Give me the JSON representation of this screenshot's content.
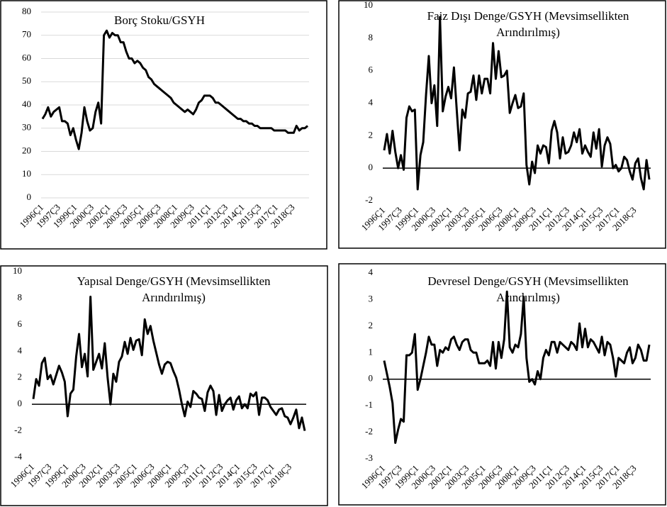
{
  "chart_data": [
    {
      "type": "line",
      "title": [
        "Borç Stoku/GSYH"
      ],
      "color": "#000000",
      "grid": true,
      "ylim": [
        0,
        80
      ],
      "yticks": [
        0,
        10,
        20,
        30,
        40,
        50,
        60,
        70,
        80
      ],
      "categories": [
        "1996Ç1",
        null,
        null,
        null,
        null,
        null,
        "1997Ç3",
        null,
        null,
        null,
        null,
        null,
        "1999Ç1",
        null,
        null,
        null,
        null,
        null,
        "2000Ç3",
        null,
        null,
        null,
        null,
        null,
        "2002Ç1",
        null,
        null,
        null,
        null,
        null,
        "2003Ç3",
        null,
        null,
        null,
        null,
        null,
        "2005Ç1",
        null,
        null,
        null,
        null,
        null,
        "2006Ç3",
        null,
        null,
        null,
        null,
        null,
        "2008Ç1",
        null,
        null,
        null,
        null,
        null,
        "2009Ç3",
        null,
        null,
        null,
        null,
        null,
        "2011Ç1",
        null,
        null,
        null,
        null,
        null,
        "2012Ç3",
        null,
        null,
        null,
        null,
        null,
        "2014Ç1",
        null,
        null,
        null,
        null,
        null,
        "2015Ç3",
        null,
        null,
        null,
        null,
        null,
        "2017Ç1",
        null,
        null,
        null,
        null,
        null,
        "2018Ç3",
        null,
        null,
        null,
        null,
        null
      ],
      "values": [
        34,
        36,
        39,
        35,
        37,
        38,
        39,
        33,
        33,
        32,
        27,
        30,
        25,
        21,
        28,
        39,
        33,
        29,
        30,
        37,
        41,
        32,
        70,
        72,
        69,
        71,
        70,
        70,
        67,
        67,
        63,
        60,
        60,
        58,
        59,
        58,
        56,
        55,
        52,
        51,
        49,
        48,
        47,
        46,
        45,
        44,
        43,
        41,
        40,
        39,
        38,
        37,
        38,
        37,
        36,
        38,
        41,
        42,
        44,
        44,
        44,
        43,
        41,
        41,
        40,
        39,
        38,
        37,
        36,
        35,
        34,
        34,
        33,
        33,
        32,
        32,
        31,
        31,
        30,
        30,
        30,
        30,
        30,
        29,
        29,
        29,
        29,
        29,
        28,
        28,
        28,
        31,
        29,
        30,
        30,
        31
      ]
    },
    {
      "type": "line",
      "title": [
        "Faiz Dışı Denge/GSYH (Mevsimsellikten",
        "Arındırılmış)"
      ],
      "color": "#000000",
      "grid": false,
      "ylim": [
        -2,
        10
      ],
      "yticks": [
        -2,
        0,
        2,
        4,
        6,
        8,
        10
      ],
      "categories": [
        "1996Ç1",
        null,
        null,
        null,
        null,
        null,
        "1997Ç3",
        null,
        null,
        null,
        null,
        null,
        "1999Ç1",
        null,
        null,
        null,
        null,
        null,
        "2000Ç3",
        null,
        null,
        null,
        null,
        null,
        "2002Ç1",
        null,
        null,
        null,
        null,
        null,
        "2003Ç3",
        null,
        null,
        null,
        null,
        null,
        "2005Ç1",
        null,
        null,
        null,
        null,
        null,
        "2006Ç3",
        null,
        null,
        null,
        null,
        null,
        "2008Ç1",
        null,
        null,
        null,
        null,
        null,
        "2009Ç3",
        null,
        null,
        null,
        null,
        null,
        "2011Ç1",
        null,
        null,
        null,
        null,
        null,
        "2012Ç3",
        null,
        null,
        null,
        null,
        null,
        "2014Ç1",
        null,
        null,
        null,
        null,
        null,
        "2015Ç3",
        null,
        null,
        null,
        null,
        null,
        "2017Ç1",
        null,
        null,
        null,
        null,
        null,
        "2018Ç3",
        null,
        null,
        null,
        null,
        null
      ],
      "values": [
        1.1,
        2.1,
        0.9,
        2.3,
        1.0,
        0.0,
        0.8,
        -0.1,
        3.1,
        3.8,
        3.5,
        3.6,
        -1.3,
        0.8,
        1.6,
        4.5,
        6.9,
        4.0,
        5.1,
        2.6,
        9.3,
        3.5,
        4.4,
        5.0,
        4.3,
        6.2,
        3.6,
        1.1,
        3.6,
        3.1,
        4.6,
        4.7,
        5.7,
        4.2,
        5.7,
        4.6,
        5.5,
        5.5,
        4.6,
        7.7,
        5.5,
        7.2,
        5.6,
        5.7,
        6.0,
        3.4,
        4.0,
        4.5,
        3.7,
        3.8,
        4.6,
        0.2,
        -1.0,
        0.4,
        -0.3,
        1.4,
        0.9,
        1.4,
        1.3,
        0.3,
        2.3,
        2.9,
        2.2,
        0.6,
        1.9,
        0.9,
        1.0,
        1.4,
        2.2,
        1.6,
        2.4,
        0.9,
        1.4,
        1.0,
        0.7,
        2.2,
        1.2,
        2.4,
        0.1,
        1.4,
        1.9,
        1.5,
        0.0,
        0.2,
        -0.2,
        0.0,
        0.7,
        0.5,
        -0.2,
        -0.7,
        0.3,
        0.6,
        -0.6,
        -1.3,
        0.5,
        -0.7
      ]
    },
    {
      "type": "line",
      "title": [
        "Yapısal Denge/GSYH (Mevsimsellikten",
        "Arındırılmış)"
      ],
      "color": "#000000",
      "grid": false,
      "ylim": [
        -4,
        10
      ],
      "yticks": [
        -4,
        -2,
        0,
        2,
        4,
        6,
        8,
        10
      ],
      "categories": [
        "1996Ç1",
        null,
        null,
        null,
        null,
        null,
        "1997Ç3",
        null,
        null,
        null,
        null,
        null,
        "1999Ç1",
        null,
        null,
        null,
        null,
        null,
        "2000Ç3",
        null,
        null,
        null,
        null,
        null,
        "2002Ç1",
        null,
        null,
        null,
        null,
        null,
        "2003Ç3",
        null,
        null,
        null,
        null,
        null,
        "2005Ç1",
        null,
        null,
        null,
        null,
        null,
        "2006Ç3",
        null,
        null,
        null,
        null,
        null,
        "2008Ç1",
        null,
        null,
        null,
        null,
        null,
        "2009Ç3",
        null,
        null,
        null,
        null,
        null,
        "2011Ç1",
        null,
        null,
        null,
        null,
        null,
        "2012Ç3",
        null,
        null,
        null,
        null,
        null,
        "2014Ç1",
        null,
        null,
        null,
        null,
        null,
        "2015Ç3",
        null,
        null,
        null,
        null,
        null,
        "2017Ç1",
        null,
        null,
        null,
        null,
        null,
        "2018Ç3",
        null,
        null,
        null,
        null,
        null
      ],
      "values": [
        0.4,
        1.9,
        1.4,
        3.1,
        3.5,
        1.9,
        2.2,
        1.5,
        2.2,
        2.9,
        2.4,
        1.7,
        -0.9,
        0.8,
        1.1,
        3.6,
        5.3,
        2.8,
        3.8,
        2.1,
        8.1,
        2.6,
        3.2,
        3.8,
        2.7,
        4.6,
        2.0,
        0.0,
        2.3,
        1.7,
        3.2,
        3.6,
        4.7,
        3.8,
        5.0,
        4.1,
        4.8,
        4.9,
        3.7,
        6.4,
        5.3,
        5.9,
        4.8,
        3.9,
        3.0,
        2.3,
        3.0,
        3.2,
        3.1,
        2.5,
        2.0,
        1.1,
        0.0,
        -0.9,
        0.2,
        -0.2,
        1.0,
        0.8,
        0.5,
        0.4,
        -0.5,
        0.9,
        1.4,
        1.0,
        -0.8,
        0.7,
        -0.5,
        0.0,
        0.3,
        0.5,
        -0.4,
        0.3,
        0.6,
        -0.3,
        0.0,
        -0.3,
        0.8,
        0.6,
        0.9,
        -0.8,
        0.5,
        0.5,
        0.3,
        -0.2,
        -0.5,
        -0.8,
        -0.4,
        -0.3,
        -0.9,
        -1.0,
        -1.5,
        -1.0,
        -0.4,
        -1.8,
        -1.0,
        -2.0
      ]
    },
    {
      "type": "line",
      "title": [
        "Devresel Denge/GSYH (Mevsimsellikten",
        "Arındırılmış)"
      ],
      "color": "#000000",
      "grid": false,
      "ylim": [
        -3,
        4
      ],
      "yticks": [
        -3,
        -2,
        -1,
        0,
        1,
        2,
        3,
        4
      ],
      "categories": [
        "1996Ç1",
        null,
        null,
        null,
        null,
        null,
        "1997Ç3",
        null,
        null,
        null,
        null,
        null,
        "1999Ç1",
        null,
        null,
        null,
        null,
        null,
        "2000Ç3",
        null,
        null,
        null,
        null,
        null,
        "2002Ç1",
        null,
        null,
        null,
        null,
        null,
        "2003Ç3",
        null,
        null,
        null,
        null,
        null,
        "2005Ç1",
        null,
        null,
        null,
        null,
        null,
        "2006Ç3",
        null,
        null,
        null,
        null,
        null,
        "2008Ç1",
        null,
        null,
        null,
        null,
        null,
        "2009Ç3",
        null,
        null,
        null,
        null,
        null,
        "2011Ç1",
        null,
        null,
        null,
        null,
        null,
        "2012Ç3",
        null,
        null,
        null,
        null,
        null,
        "2014Ç1",
        null,
        null,
        null,
        null,
        null,
        "2015Ç3",
        null,
        null,
        null,
        null,
        null,
        "2017Ç1",
        null,
        null,
        null,
        null,
        null,
        "2018Ç3",
        null,
        null,
        null,
        null,
        null
      ],
      "values": [
        0.7,
        0.2,
        -0.3,
        -0.9,
        -2.4,
        -1.9,
        -1.5,
        -1.6,
        0.9,
        0.9,
        1.0,
        1.7,
        -0.4,
        0.0,
        0.5,
        1.0,
        1.6,
        1.3,
        1.3,
        0.5,
        1.1,
        1.0,
        1.2,
        1.1,
        1.5,
        1.6,
        1.3,
        1.1,
        1.4,
        1.5,
        1.5,
        1.1,
        1.0,
        1.0,
        0.6,
        0.6,
        0.6,
        0.7,
        0.5,
        1.4,
        0.4,
        1.4,
        0.8,
        1.5,
        3.3,
        1.2,
        1.0,
        1.3,
        1.2,
        1.7,
        3.1,
        0.8,
        -0.1,
        0.0,
        -0.2,
        0.3,
        0.0,
        0.8,
        1.1,
        0.9,
        1.4,
        1.4,
        1.0,
        1.4,
        1.3,
        1.2,
        1.1,
        1.4,
        1.3,
        1.1,
        2.1,
        1.2,
        1.9,
        1.2,
        1.5,
        1.4,
        1.2,
        1.0,
        1.6,
        0.9,
        1.4,
        1.3,
        0.8,
        0.1,
        0.8,
        0.7,
        0.6,
        1.0,
        1.2,
        0.6,
        0.8,
        1.3,
        1.1,
        0.7,
        0.7,
        1.3
      ]
    }
  ]
}
